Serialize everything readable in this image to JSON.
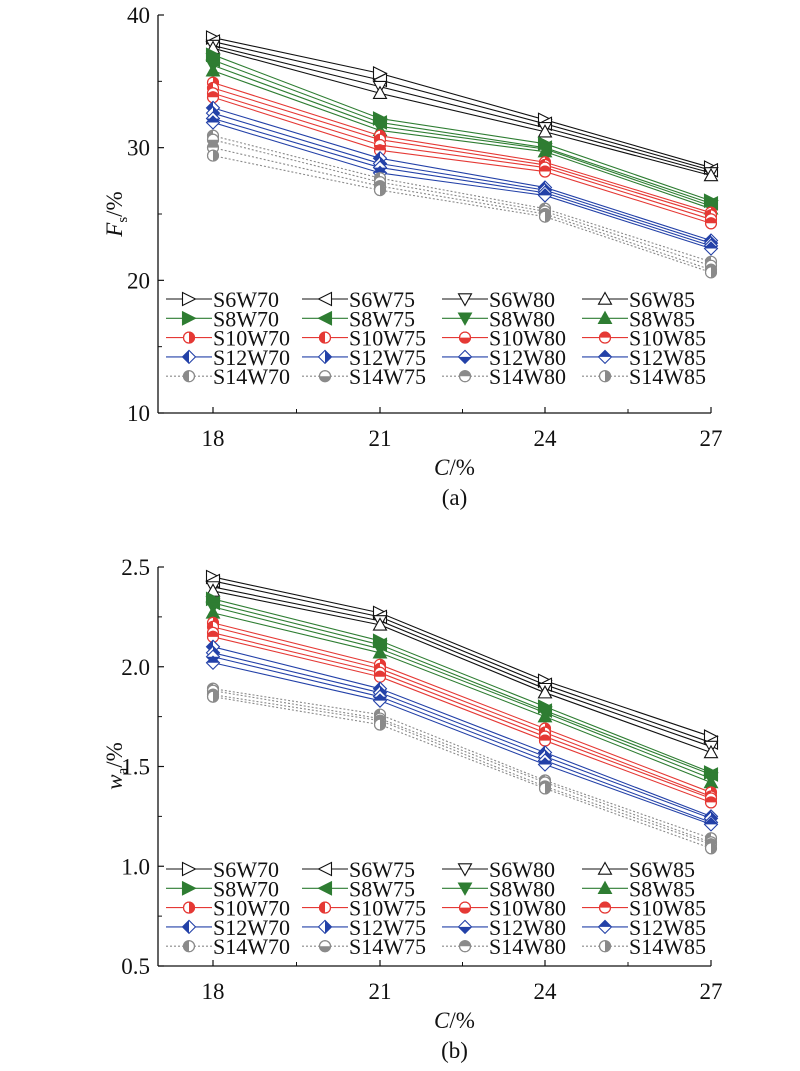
{
  "chart_data": [
    {
      "type": "line",
      "panel_label": "(a)",
      "title": "",
      "xlabel_italic": "C",
      "xlabel_suffix": "/%",
      "ylabel_italic": "F",
      "ylabel_sub": "s",
      "ylabel_suffix": "/%",
      "x": [
        18,
        21,
        24,
        27
      ],
      "xticks": [
        "18",
        "21",
        "24",
        "27"
      ],
      "xlim": [
        16.5,
        27
      ],
      "ylim": [
        10,
        40
      ],
      "yticks": [
        "10",
        "20",
        "30",
        "40"
      ],
      "ymajor": [
        10,
        20,
        30,
        40
      ],
      "yminor": [
        15,
        25,
        35
      ],
      "grid": false,
      "legend_position": "bottom-inside",
      "series": [
        {
          "name": "S6W70",
          "group": "S6",
          "values": [
            38.3,
            35.6,
            32.1,
            28.5
          ]
        },
        {
          "name": "S6W75",
          "group": "S6",
          "values": [
            38.0,
            35.1,
            31.8,
            28.3
          ]
        },
        {
          "name": "S6W80",
          "group": "S6",
          "values": [
            37.7,
            34.6,
            31.5,
            28.1
          ]
        },
        {
          "name": "S6W85",
          "group": "S6",
          "values": [
            37.5,
            34.1,
            31.2,
            27.9
          ]
        },
        {
          "name": "S8W70",
          "group": "S8",
          "values": [
            37.0,
            32.2,
            30.3,
            26.0
          ]
        },
        {
          "name": "S8W75",
          "group": "S8",
          "values": [
            36.6,
            31.9,
            30.0,
            25.8
          ]
        },
        {
          "name": "S8W80",
          "group": "S8",
          "values": [
            36.2,
            31.6,
            29.9,
            25.6
          ]
        },
        {
          "name": "S8W85",
          "group": "S8",
          "values": [
            35.8,
            31.3,
            29.7,
            25.4
          ]
        },
        {
          "name": "S10W70",
          "group": "S10",
          "values": [
            34.9,
            30.9,
            28.9,
            25.1
          ]
        },
        {
          "name": "S10W75",
          "group": "S10",
          "values": [
            34.5,
            30.6,
            28.7,
            24.9
          ]
        },
        {
          "name": "S10W80",
          "group": "S10",
          "values": [
            34.1,
            30.2,
            28.5,
            24.6
          ]
        },
        {
          "name": "S10W85",
          "group": "S10",
          "values": [
            33.8,
            29.8,
            28.2,
            24.3
          ]
        },
        {
          "name": "S12W70",
          "group": "S12",
          "values": [
            33.0,
            29.2,
            27.0,
            23.0
          ]
        },
        {
          "name": "S12W75",
          "group": "S12",
          "values": [
            32.6,
            28.8,
            26.8,
            22.8
          ]
        },
        {
          "name": "S12W80",
          "group": "S12",
          "values": [
            32.2,
            28.5,
            26.6,
            22.6
          ]
        },
        {
          "name": "S12W85",
          "group": "S12",
          "values": [
            31.9,
            28.1,
            26.4,
            22.4
          ]
        },
        {
          "name": "S14W70",
          "group": "S14",
          "values": [
            30.9,
            27.7,
            25.4,
            21.4
          ]
        },
        {
          "name": "S14W75",
          "group": "S14",
          "values": [
            30.6,
            27.4,
            25.2,
            21.1
          ]
        },
        {
          "name": "S14W80",
          "group": "S14",
          "values": [
            30.0,
            27.1,
            25.0,
            20.8
          ]
        },
        {
          "name": "S14W85",
          "group": "S14",
          "values": [
            29.4,
            26.8,
            24.8,
            20.6
          ]
        }
      ]
    },
    {
      "type": "line",
      "panel_label": "(b)",
      "title": "",
      "xlabel_italic": "C",
      "xlabel_suffix": "/%",
      "ylabel_italic": "w",
      "ylabel_sub": "a",
      "ylabel_suffix": "/%",
      "x": [
        18,
        21,
        24,
        27
      ],
      "xticks": [
        "18",
        "21",
        "24",
        "27"
      ],
      "xlim": [
        16.5,
        27
      ],
      "ylim": [
        0.5,
        2.5
      ],
      "yticks": [
        "0.5",
        "1.0",
        "1.5",
        "2.0",
        "2.5"
      ],
      "ymajor": [
        0.5,
        1.0,
        1.5,
        2.0,
        2.5
      ],
      "yminor": [
        0.75,
        1.25,
        1.75,
        2.25
      ],
      "grid": false,
      "legend_position": "bottom-inside",
      "series": [
        {
          "name": "S6W70",
          "group": "S6",
          "values": [
            2.45,
            2.27,
            1.93,
            1.65
          ]
        },
        {
          "name": "S6W75",
          "group": "S6",
          "values": [
            2.43,
            2.25,
            1.91,
            1.62
          ]
        },
        {
          "name": "S6W80",
          "group": "S6",
          "values": [
            2.4,
            2.23,
            1.89,
            1.6
          ]
        },
        {
          "name": "S6W85",
          "group": "S6",
          "values": [
            2.38,
            2.21,
            1.87,
            1.57
          ]
        },
        {
          "name": "S8W70",
          "group": "S8",
          "values": [
            2.34,
            2.13,
            1.8,
            1.47
          ]
        },
        {
          "name": "S8W75",
          "group": "S8",
          "values": [
            2.32,
            2.11,
            1.78,
            1.46
          ]
        },
        {
          "name": "S8W80",
          "group": "S8",
          "values": [
            2.3,
            2.09,
            1.77,
            1.44
          ]
        },
        {
          "name": "S8W85",
          "group": "S8",
          "values": [
            2.27,
            2.07,
            1.75,
            1.42
          ]
        },
        {
          "name": "S10W70",
          "group": "S10",
          "values": [
            2.22,
            2.01,
            1.69,
            1.37
          ]
        },
        {
          "name": "S10W75",
          "group": "S10",
          "values": [
            2.2,
            1.99,
            1.67,
            1.35
          ]
        },
        {
          "name": "S10W80",
          "group": "S10",
          "values": [
            2.17,
            1.97,
            1.65,
            1.34
          ]
        },
        {
          "name": "S10W85",
          "group": "S10",
          "values": [
            2.15,
            1.95,
            1.63,
            1.32
          ]
        },
        {
          "name": "S12W70",
          "group": "S12",
          "values": [
            2.1,
            1.89,
            1.57,
            1.25
          ]
        },
        {
          "name": "S12W75",
          "group": "S12",
          "values": [
            2.07,
            1.87,
            1.55,
            1.24
          ]
        },
        {
          "name": "S12W80",
          "group": "S12",
          "values": [
            2.05,
            1.85,
            1.53,
            1.22
          ]
        },
        {
          "name": "S12W85",
          "group": "S12",
          "values": [
            2.02,
            1.83,
            1.51,
            1.21
          ]
        },
        {
          "name": "S14W70",
          "group": "S14",
          "values": [
            1.89,
            1.76,
            1.43,
            1.14
          ]
        },
        {
          "name": "S14W75",
          "group": "S14",
          "values": [
            1.88,
            1.74,
            1.42,
            1.12
          ]
        },
        {
          "name": "S14W80",
          "group": "S14",
          "values": [
            1.86,
            1.73,
            1.4,
            1.11
          ]
        },
        {
          "name": "S14W85",
          "group": "S14",
          "values": [
            1.85,
            1.71,
            1.39,
            1.09
          ]
        }
      ]
    }
  ],
  "style": {
    "group_colors": {
      "S6": "#111111",
      "S8": "#2e7d32",
      "S10": "#e53935",
      "S12": "#2341a8",
      "S14": "#8a8a8a"
    },
    "group_dashed": {
      "S6": false,
      "S8": false,
      "S10": false,
      "S12": false,
      "S14": true
    },
    "markers": {
      "S6": [
        "triangle-right-open",
        "triangle-left-open",
        "triangle-down-open",
        "triangle-up-open"
      ],
      "S8": [
        "triangle-right-filled",
        "triangle-left-filled",
        "triangle-down-filled",
        "triangle-up-filled"
      ],
      "S10": [
        "circle-right-half",
        "circle-left-half",
        "circle-bottom-half",
        "circle-top-half"
      ],
      "S12": [
        "diamond-left-half",
        "diamond-right-half",
        "diamond-bottom-half",
        "diamond-top-half"
      ],
      "S14": [
        "circle-left-half",
        "circle-bottom-half",
        "circle-top-half",
        "circle-right-half"
      ]
    }
  }
}
